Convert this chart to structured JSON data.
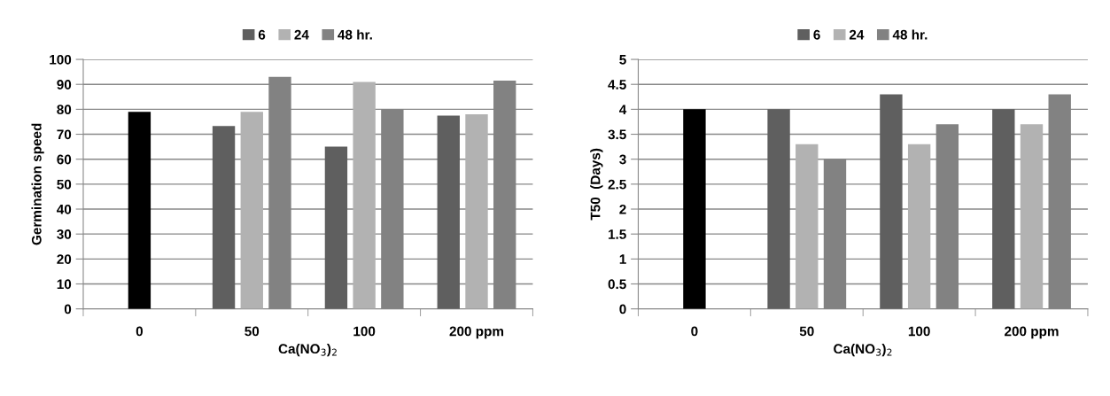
{
  "chart_data": [
    {
      "type": "bar",
      "categories": [
        "0",
        "50",
        "100",
        "200 ppm"
      ],
      "xlabel": "Ca(NO$_{3}$)$_{2}$",
      "ylabel": "Germination speed",
      "ylim": [
        0,
        100
      ],
      "yticks": [
        0,
        10,
        20,
        30,
        40,
        50,
        60,
        70,
        80,
        90,
        100
      ],
      "grid": "y",
      "legend": "top",
      "series": [
        {
          "name": "6",
          "color": "#5f5f5f",
          "values": [
            null,
            73.3,
            65,
            77.5
          ]
        },
        {
          "name": "24",
          "color": "#b2b2b2",
          "colors": [
            "#000000",
            "#b2b2b2",
            "#b2b2b2",
            "#b2b2b2"
          ],
          "values": [
            79,
            79,
            91,
            78
          ]
        },
        {
          "name": "48 hr.",
          "color": "#828282",
          "values": [
            null,
            93,
            80,
            91.5
          ]
        }
      ]
    },
    {
      "type": "bar",
      "categories": [
        "0",
        "50",
        "100",
        "200 ppm"
      ],
      "xlabel": "Ca(NO$_{3}$)$_{2}$",
      "ylabel": "T50  (Days)",
      "ylim": [
        0,
        5
      ],
      "yticks": [
        0,
        0.5,
        1,
        1.5,
        2,
        2.5,
        3,
        3.5,
        4,
        4.5,
        5
      ],
      "grid": "y",
      "legend": "top",
      "series": [
        {
          "name": "6",
          "color": "#5f5f5f",
          "values": [
            null,
            4,
            4.3,
            4
          ]
        },
        {
          "name": "24",
          "color": "#b2b2b2",
          "colors": [
            "#000000",
            "#b2b2b2",
            "#b2b2b2",
            "#b2b2b2"
          ],
          "values": [
            4,
            3.3,
            3.3,
            3.7
          ]
        },
        {
          "name": "48 hr.",
          "color": "#828282",
          "values": [
            null,
            3,
            3.7,
            4.3
          ]
        }
      ]
    }
  ]
}
